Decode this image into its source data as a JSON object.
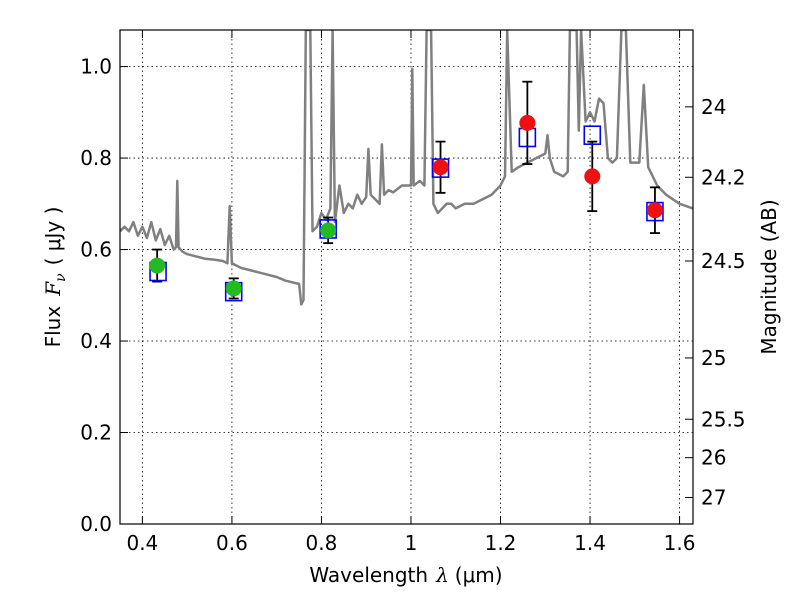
{
  "chart_data": {
    "type": "scatter",
    "title": "",
    "xlabel_prefix": "Wavelength",
    "xlabel_symbol": "λ",
    "xlabel_unit": "(μm)",
    "ylabel_prefix": "Flux",
    "ylabel_symbol": "F",
    "ylabel_subscript": "ν",
    "ylabel_unit": "( μJy )",
    "y2label": "Magnitude (AB)",
    "xlim": [
      0.35,
      1.63
    ],
    "ylim": [
      0.0,
      1.08
    ],
    "grid": true,
    "x_ticks": [
      0.4,
      0.6,
      0.8,
      1.0,
      1.2,
      1.4,
      1.6
    ],
    "x_tick_labels": [
      "0.4",
      "0.6",
      "0.8",
      "1",
      "1.2",
      "1.4",
      "1.6"
    ],
    "y_ticks": [
      0.0,
      0.2,
      0.4,
      0.6,
      0.8,
      1.0
    ],
    "y_tick_labels": [
      "0.0",
      "0.2",
      "0.4",
      "0.6",
      "0.8",
      "1.0"
    ],
    "y2_ticks": [
      {
        "label": "24",
        "flux": 0.912
      },
      {
        "label": "24.2",
        "flux": 0.758
      },
      {
        "label": "24.5",
        "flux": 0.575
      },
      {
        "label": "25",
        "flux": 0.363
      },
      {
        "label": "25.5",
        "flux": 0.229
      },
      {
        "label": "26",
        "flux": 0.145
      },
      {
        "label": "27",
        "flux": 0.058
      }
    ],
    "series": [
      {
        "kind": "spectrum",
        "color": "#808080",
        "points": [
          [
            0.35,
            0.64
          ],
          [
            0.36,
            0.65
          ],
          [
            0.37,
            0.64
          ],
          [
            0.38,
            0.66
          ],
          [
            0.39,
            0.63
          ],
          [
            0.4,
            0.65
          ],
          [
            0.41,
            0.625
          ],
          [
            0.42,
            0.66
          ],
          [
            0.43,
            0.62
          ],
          [
            0.44,
            0.645
          ],
          [
            0.45,
            0.61
          ],
          [
            0.46,
            0.63
          ],
          [
            0.47,
            0.6
          ],
          [
            0.475,
            0.605
          ],
          [
            0.478,
            0.75
          ],
          [
            0.481,
            0.605
          ],
          [
            0.49,
            0.595
          ],
          [
            0.5,
            0.59
          ],
          [
            0.52,
            0.585
          ],
          [
            0.54,
            0.58
          ],
          [
            0.56,
            0.578
          ],
          [
            0.58,
            0.575
          ],
          [
            0.59,
            0.57
          ],
          [
            0.595,
            0.695
          ],
          [
            0.6,
            0.57
          ],
          [
            0.62,
            0.56
          ],
          [
            0.64,
            0.555
          ],
          [
            0.66,
            0.55
          ],
          [
            0.68,
            0.545
          ],
          [
            0.7,
            0.54
          ],
          [
            0.72,
            0.532
          ],
          [
            0.74,
            0.527
          ],
          [
            0.75,
            0.525
          ],
          [
            0.755,
            0.48
          ],
          [
            0.76,
            0.49
          ],
          [
            0.765,
            1.08
          ],
          [
            0.775,
            1.08
          ],
          [
            0.78,
            0.64
          ],
          [
            0.79,
            0.65
          ],
          [
            0.8,
            0.68
          ],
          [
            0.81,
            0.665
          ],
          [
            0.82,
            0.69
          ],
          [
            0.825,
            1.08
          ],
          [
            0.83,
            0.66
          ],
          [
            0.84,
            0.74
          ],
          [
            0.85,
            0.68
          ],
          [
            0.86,
            0.7
          ],
          [
            0.87,
            0.69
          ],
          [
            0.88,
            0.72
          ],
          [
            0.89,
            0.7
          ],
          [
            0.9,
            0.715
          ],
          [
            0.905,
            0.82
          ],
          [
            0.91,
            0.72
          ],
          [
            0.92,
            0.71
          ],
          [
            0.93,
            0.7
          ],
          [
            0.935,
            0.83
          ],
          [
            0.94,
            0.72
          ],
          [
            0.95,
            0.73
          ],
          [
            0.96,
            0.725
          ],
          [
            0.98,
            0.74
          ],
          [
            1.0,
            0.74
          ],
          [
            1.003,
            0.995
          ],
          [
            1.006,
            0.74
          ],
          [
            1.02,
            0.75
          ],
          [
            1.03,
            0.74
          ],
          [
            1.035,
            1.08
          ],
          [
            1.045,
            1.08
          ],
          [
            1.05,
            0.7
          ],
          [
            1.06,
            0.68
          ],
          [
            1.07,
            0.69
          ],
          [
            1.08,
            0.7
          ],
          [
            1.09,
            0.7
          ],
          [
            1.1,
            0.69
          ],
          [
            1.12,
            0.7
          ],
          [
            1.14,
            0.7
          ],
          [
            1.16,
            0.71
          ],
          [
            1.18,
            0.72
          ],
          [
            1.2,
            0.74
          ],
          [
            1.21,
            0.76
          ],
          [
            1.215,
            1.08
          ],
          [
            1.225,
            0.77
          ],
          [
            1.24,
            0.78
          ],
          [
            1.26,
            0.79
          ],
          [
            1.28,
            0.8
          ],
          [
            1.3,
            0.81
          ],
          [
            1.305,
            0.85
          ],
          [
            1.31,
            0.8
          ],
          [
            1.32,
            0.77
          ],
          [
            1.34,
            0.76
          ],
          [
            1.35,
            0.77
          ],
          [
            1.355,
            1.08
          ],
          [
            1.365,
            1.08
          ],
          [
            1.37,
            1.08
          ],
          [
            1.375,
            0.86
          ],
          [
            1.38,
            1.08
          ],
          [
            1.39,
            0.88
          ],
          [
            1.4,
            0.9
          ],
          [
            1.41,
            0.88
          ],
          [
            1.42,
            0.93
          ],
          [
            1.43,
            0.92
          ],
          [
            1.44,
            0.8
          ],
          [
            1.45,
            0.79
          ],
          [
            1.46,
            0.8
          ],
          [
            1.47,
            1.08
          ],
          [
            1.48,
            1.08
          ],
          [
            1.49,
            0.79
          ],
          [
            1.5,
            0.79
          ],
          [
            1.51,
            0.79
          ],
          [
            1.52,
            0.96
          ],
          [
            1.53,
            0.78
          ],
          [
            1.55,
            0.74
          ],
          [
            1.57,
            0.72
          ],
          [
            1.6,
            0.7
          ],
          [
            1.63,
            0.69
          ]
        ]
      },
      {
        "kind": "model-photometry",
        "marker": "square",
        "color": "#0000ff",
        "points": [
          [
            0.435,
            0.552
          ],
          [
            0.604,
            0.508
          ],
          [
            0.815,
            0.645
          ],
          [
            1.066,
            0.778
          ],
          [
            1.26,
            0.845
          ],
          [
            1.405,
            0.85
          ],
          [
            1.545,
            0.683
          ]
        ]
      },
      {
        "kind": "observed-green",
        "marker": "circle",
        "color": "#22bb22",
        "points": [
          {
            "x": 0.433,
            "y": 0.565,
            "yerr": 0.035
          },
          {
            "x": 0.604,
            "y": 0.515,
            "yerr": 0.022
          },
          {
            "x": 0.815,
            "y": 0.642,
            "yerr": 0.028
          }
        ]
      },
      {
        "kind": "observed-red",
        "marker": "circle",
        "color": "#ee1111",
        "points": [
          {
            "x": 1.066,
            "y": 0.78,
            "yerr": 0.056
          },
          {
            "x": 1.26,
            "y": 0.877,
            "yerr": 0.09
          },
          {
            "x": 1.405,
            "y": 0.76,
            "yerr": 0.076
          },
          {
            "x": 1.545,
            "y": 0.686,
            "yerr": 0.05
          }
        ]
      }
    ]
  }
}
